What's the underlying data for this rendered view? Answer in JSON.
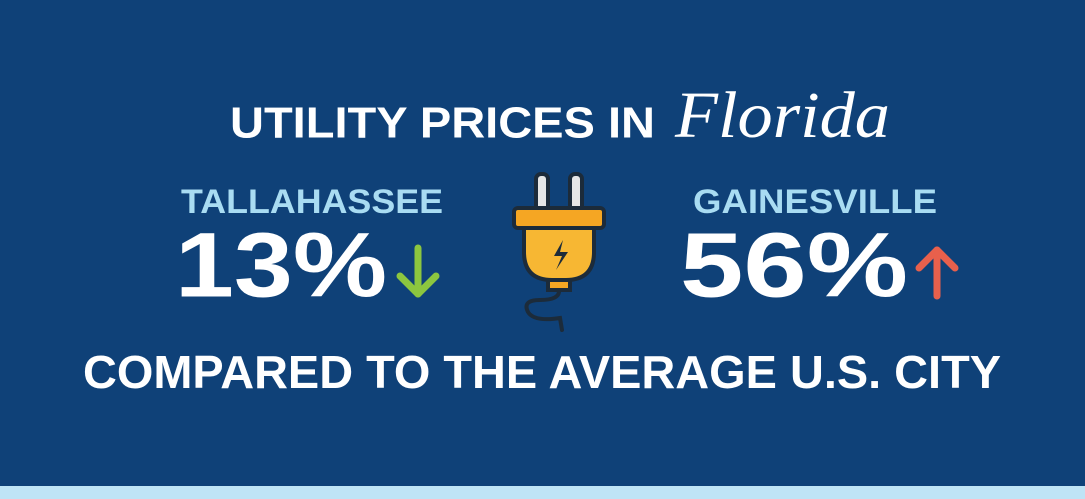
{
  "header": {
    "title": "UTILITY PRICES IN",
    "script_word": "Florida"
  },
  "cities": [
    {
      "name": "TALLAHASSEE",
      "change": "13%"
    },
    {
      "name": "GAINESVILLE",
      "change": "56%"
    }
  ],
  "footer": "COMPARED TO THE AVERAGE U.S. CITY"
}
